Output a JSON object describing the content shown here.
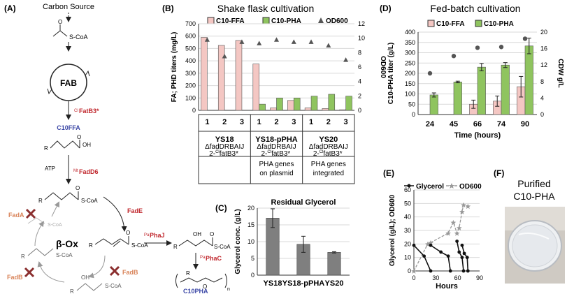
{
  "panels": {
    "a": {
      "label": "(A)",
      "carbon_source": "Carbon Source",
      "scoa": "S-CoA",
      "fab": "FAB",
      "fatb_sup": "Cl",
      "fatb": "FatB3*",
      "c10ffa": "C10FFA",
      "atp": "ATP",
      "fadd_sup": "Mt",
      "fadd": "FadD6",
      "r": "R",
      "oh": "OH",
      "o": "O",
      "beta_ox": "β-Ox",
      "fada": "FadA",
      "fade": "FadE",
      "fadb": "FadB",
      "phaj_sup": "Pa",
      "phaj": "PhaJ",
      "phac_sup": "Pa",
      "phac": "PhaC",
      "n": "n",
      "c10pha": "C10PHA"
    },
    "b": {
      "label": "(B)"
    },
    "c": {
      "label": "(C)"
    },
    "d": {
      "label": "(D)"
    },
    "e": {
      "label": "(E)"
    },
    "f": {
      "label": "(F)",
      "title_line1": "Purified",
      "title_line2": "C10-PHA"
    }
  },
  "colors": {
    "ffa": "#f4c7c3",
    "pha": "#8fc45f",
    "gray_bar": "#7f7f7f",
    "marker": "#555555",
    "dark_red": "#c0272d",
    "blue_label": "#3b47a6",
    "x_mark": "#8b2f2f",
    "fad_orange": "#d9845a"
  },
  "chart_data": [
    {
      "panel": "B",
      "type": "bar",
      "title": "Shake flask cultivation",
      "ylabel": "FA; PHD titers (mg/L)",
      "y2label": "OD600",
      "ylim": [
        0,
        700
      ],
      "yticks": [
        0,
        100,
        200,
        300,
        400,
        500,
        600,
        700
      ],
      "y2lim": [
        0,
        12
      ],
      "y2ticks": [
        0,
        2,
        4,
        6,
        8,
        10,
        12
      ],
      "legend_position": "top",
      "categories": [
        "1",
        "2",
        "3",
        "1",
        "2",
        "3",
        "1",
        "2",
        "3"
      ],
      "groups": [
        "YS18",
        "YS18-pPHA",
        "YS20"
      ],
      "series": [
        {
          "name": "C10-FFA",
          "values": [
            590,
            525,
            565,
            375,
            20,
            80,
            20,
            15,
            5
          ]
        },
        {
          "name": "C10-PHA",
          "values": [
            0,
            0,
            0,
            50,
            100,
            100,
            115,
            130,
            115
          ]
        },
        {
          "name": "OD600",
          "values": [
            9.8,
            7.5,
            9.5,
            9.3,
            9.8,
            9.5,
            9.5,
            9.0,
            7.0
          ]
        }
      ],
      "genotype_row": [
        "ΔfadDRBAIJ",
        "2-",
        "Cl",
        "fatB3*"
      ],
      "phenotype_row": [
        "",
        "PHA genes on plasmid",
        "PHA genes integrated"
      ],
      "phenotype_lines": [
        [
          "",
          ""
        ],
        [
          "PHA genes",
          "on plasmid"
        ],
        [
          "PHA genes",
          "integrated"
        ]
      ]
    },
    {
      "panel": "C",
      "type": "bar",
      "title": "Residual Glycerol",
      "ylabel": "Glycerol conc. (g/L)",
      "ylim": [
        0,
        20
      ],
      "yticks": [
        0,
        5,
        10,
        15,
        20
      ],
      "categories": [
        "YS18",
        "YS18-pPHA",
        "YS20"
      ],
      "values": [
        17.0,
        9.2,
        6.8
      ],
      "errors": [
        2.8,
        2.4,
        0.2
      ]
    },
    {
      "panel": "D",
      "type": "bar",
      "title": "Fed-batch cultivation",
      "xlabel": "Time (hours)",
      "ylabel": "C10-PHA titer (g/L)",
      "y2label": "CDW g/L",
      "ylim": [
        0,
        400
      ],
      "yticks": [
        0,
        50,
        100,
        150,
        200,
        250,
        300,
        350,
        400
      ],
      "y2lim": [
        0,
        20
      ],
      "y2ticks": [
        0,
        4,
        8,
        12,
        16,
        20
      ],
      "legend_position": "top",
      "categories": [
        "24",
        "45",
        "66",
        "74",
        "90"
      ],
      "series": [
        {
          "name": "C10-FFA",
          "values": [
            0,
            0,
            50,
            65,
            135
          ],
          "errors": [
            0,
            0,
            20,
            25,
            50
          ]
        },
        {
          "name": "C10-PHA",
          "values": [
            95,
            158,
            230,
            240,
            333
          ],
          "errors": [
            10,
            4,
            18,
            12,
            38
          ]
        },
        {
          "name": "CDW",
          "values": [
            10.0,
            14.2,
            16.2,
            16.4,
            18.4
          ]
        }
      ]
    },
    {
      "panel": "E",
      "type": "line",
      "xlabel": "Hours",
      "ylabel": "Glycerol (g/L); OD600",
      "xlim": [
        0,
        90
      ],
      "xticks": [
        0,
        30,
        60,
        90
      ],
      "ylim": [
        0,
        60
      ],
      "yticks": [
        0,
        10,
        20,
        30,
        40,
        50,
        60
      ],
      "legend_position": "top",
      "series": [
        {
          "name": "Glycerol",
          "segments": [
            [
              [
                0,
                19
              ],
              [
                14,
                11
              ],
              [
                23,
                0
              ]
            ],
            [
              [
                23,
                19
              ],
              [
                37,
                14
              ],
              [
                47,
                11
              ],
              [
                50,
                0
              ]
            ],
            [
              [
                59,
                22
              ],
              [
                62,
                14
              ],
              [
                66,
                10
              ],
              [
                68,
                0
              ]
            ],
            [
              [
                66,
                19
              ],
              [
                69,
                13
              ],
              [
                73,
                10
              ],
              [
                74,
                0
              ]
            ]
          ]
        },
        {
          "name": "OD600",
          "points": [
            [
              0,
              0
            ],
            [
              19,
              20
            ],
            [
              23,
              21
            ],
            [
              47,
              28
            ],
            [
              54,
              36
            ],
            [
              59,
              28
            ],
            [
              62,
              32
            ],
            [
              66,
              44
            ],
            [
              68,
              49
            ],
            [
              74,
              48
            ]
          ]
        }
      ]
    }
  ]
}
